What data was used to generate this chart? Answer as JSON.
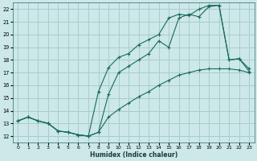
{
  "xlabel": "Humidex (Indice chaleur)",
  "bg_color": "#cce8e8",
  "grid_color": "#aacccc",
  "line_color": "#1a6b5a",
  "xlim": [
    -0.5,
    23.5
  ],
  "ylim": [
    11.5,
    22.5
  ],
  "xticks": [
    0,
    1,
    2,
    3,
    4,
    5,
    6,
    7,
    8,
    9,
    10,
    11,
    12,
    13,
    14,
    15,
    16,
    17,
    18,
    19,
    20,
    21,
    22,
    23
  ],
  "yticks": [
    12,
    13,
    14,
    15,
    16,
    17,
    18,
    19,
    20,
    21,
    22
  ],
  "series1_x": [
    0,
    1,
    2,
    3,
    4,
    5,
    6,
    7,
    8,
    9,
    10,
    11,
    12,
    13,
    14,
    15,
    16,
    17,
    18,
    19,
    20,
    21,
    22,
    23
  ],
  "series1_y": [
    13.2,
    13.5,
    13.2,
    13.0,
    12.4,
    12.3,
    12.1,
    12.0,
    12.3,
    15.3,
    17.0,
    17.5,
    18.0,
    18.5,
    19.5,
    19.0,
    21.3,
    21.6,
    21.4,
    22.2,
    22.3,
    18.0,
    18.1,
    17.1
  ],
  "series2_x": [
    0,
    1,
    2,
    3,
    4,
    5,
    6,
    7,
    8,
    9,
    10,
    11,
    12,
    13,
    14,
    15,
    16,
    17,
    18,
    19,
    20,
    21,
    22,
    23
  ],
  "series2_y": [
    13.2,
    13.5,
    13.2,
    13.0,
    12.4,
    12.3,
    12.1,
    12.0,
    15.5,
    17.4,
    18.2,
    18.5,
    19.2,
    19.6,
    20.0,
    21.3,
    21.6,
    21.5,
    22.0,
    22.3,
    22.3,
    18.0,
    18.1,
    17.3
  ],
  "series3_x": [
    0,
    1,
    2,
    3,
    4,
    5,
    6,
    7,
    8,
    9,
    10,
    11,
    12,
    13,
    14,
    15,
    16,
    17,
    18,
    19,
    20,
    21,
    22,
    23
  ],
  "series3_y": [
    13.2,
    13.5,
    13.2,
    13.0,
    12.4,
    12.3,
    12.1,
    12.0,
    12.3,
    13.5,
    14.1,
    14.6,
    15.1,
    15.5,
    16.0,
    16.4,
    16.8,
    17.0,
    17.2,
    17.3,
    17.3,
    17.3,
    17.2,
    17.0
  ]
}
